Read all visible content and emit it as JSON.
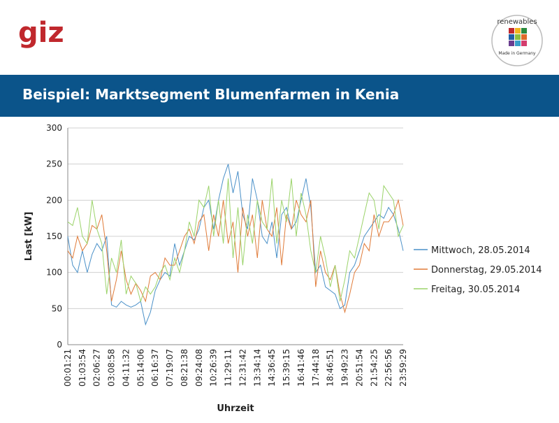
{
  "header": {
    "logo": "giz",
    "badge_text": "renewables",
    "badge_subtext": "Made in Germany",
    "title": "Beispiel: Marktsegment Blumenfarmen in Kenia"
  },
  "chart_data": {
    "type": "line",
    "ylabel": "Last [kW]",
    "xlabel": "Uhrzeit",
    "ylim": [
      0,
      300
    ],
    "yticks": [
      0,
      50,
      100,
      150,
      200,
      250,
      300
    ],
    "grid": true,
    "legend": "right",
    "categories": [
      "00:01:21",
      null,
      null,
      "01:03:54",
      null,
      null,
      "02:06:27",
      null,
      null,
      "03:08:58",
      null,
      null,
      "04:11:32",
      null,
      null,
      "05:14:06",
      null,
      null,
      "06:16:37",
      null,
      null,
      "07:19:07",
      null,
      null,
      "08:21:38",
      null,
      null,
      "09:24:08",
      null,
      null,
      "10:26:39",
      null,
      null,
      "11:29:11",
      null,
      null,
      "12:31:42",
      null,
      null,
      "13:34:14",
      null,
      null,
      "14:36:45",
      null,
      null,
      "15:39:15",
      null,
      null,
      "16:41:46",
      null,
      null,
      "17:44:18",
      null,
      null,
      "18:46:51",
      null,
      null,
      "19:49:23",
      null,
      null,
      "20:51:54",
      null,
      null,
      "21:54:25",
      null,
      null,
      "22:56:56",
      null,
      null,
      "23:59:29"
    ],
    "series": [
      {
        "name": "Mittwoch, 28.05.2014",
        "color": "#4a90c8",
        "values": [
          150,
          110,
          100,
          130,
          100,
          125,
          140,
          130,
          150,
          55,
          52,
          60,
          55,
          52,
          55,
          60,
          28,
          45,
          75,
          90,
          100,
          95,
          140,
          110,
          130,
          150,
          145,
          160,
          190,
          200,
          160,
          200,
          230,
          250,
          210,
          240,
          180,
          160,
          230,
          200,
          150,
          140,
          170,
          120,
          180,
          190,
          160,
          170,
          200,
          230,
          190,
          100,
          110,
          80,
          75,
          70,
          50,
          55,
          100,
          110,
          130,
          150,
          160,
          170,
          180,
          175,
          190,
          180,
          160,
          130
        ]
      },
      {
        "name": "Donnerstag, 29.05.2014",
        "color": "#e07b39",
        "values": [
          130,
          120,
          150,
          130,
          140,
          165,
          160,
          180,
          130,
          60,
          90,
          130,
          90,
          70,
          85,
          75,
          60,
          95,
          100,
          90,
          120,
          110,
          110,
          130,
          150,
          160,
          140,
          170,
          180,
          130,
          180,
          150,
          200,
          140,
          170,
          100,
          190,
          150,
          180,
          120,
          200,
          160,
          150,
          190,
          110,
          180,
          160,
          200,
          180,
          170,
          200,
          80,
          130,
          100,
          90,
          110,
          70,
          45,
          70,
          100,
          110,
          140,
          130,
          180,
          150,
          170,
          170,
          180,
          200,
          165
        ]
      },
      {
        "name": "Freitag, 30.05.2014",
        "color": "#9bd36a",
        "values": [
          170,
          165,
          190,
          150,
          140,
          200,
          160,
          140,
          70,
          120,
          100,
          145,
          70,
          95,
          85,
          60,
          80,
          70,
          80,
          100,
          110,
          90,
          120,
          100,
          130,
          170,
          150,
          200,
          190,
          220,
          150,
          200,
          140,
          230,
          120,
          190,
          110,
          180,
          140,
          200,
          170,
          160,
          230,
          140,
          200,
          170,
          230,
          150,
          210,
          180,
          130,
          100,
          150,
          120,
          80,
          110,
          60,
          90,
          130,
          120,
          150,
          180,
          210,
          200,
          160,
          220,
          210,
          200,
          150,
          165
        ]
      }
    ]
  }
}
